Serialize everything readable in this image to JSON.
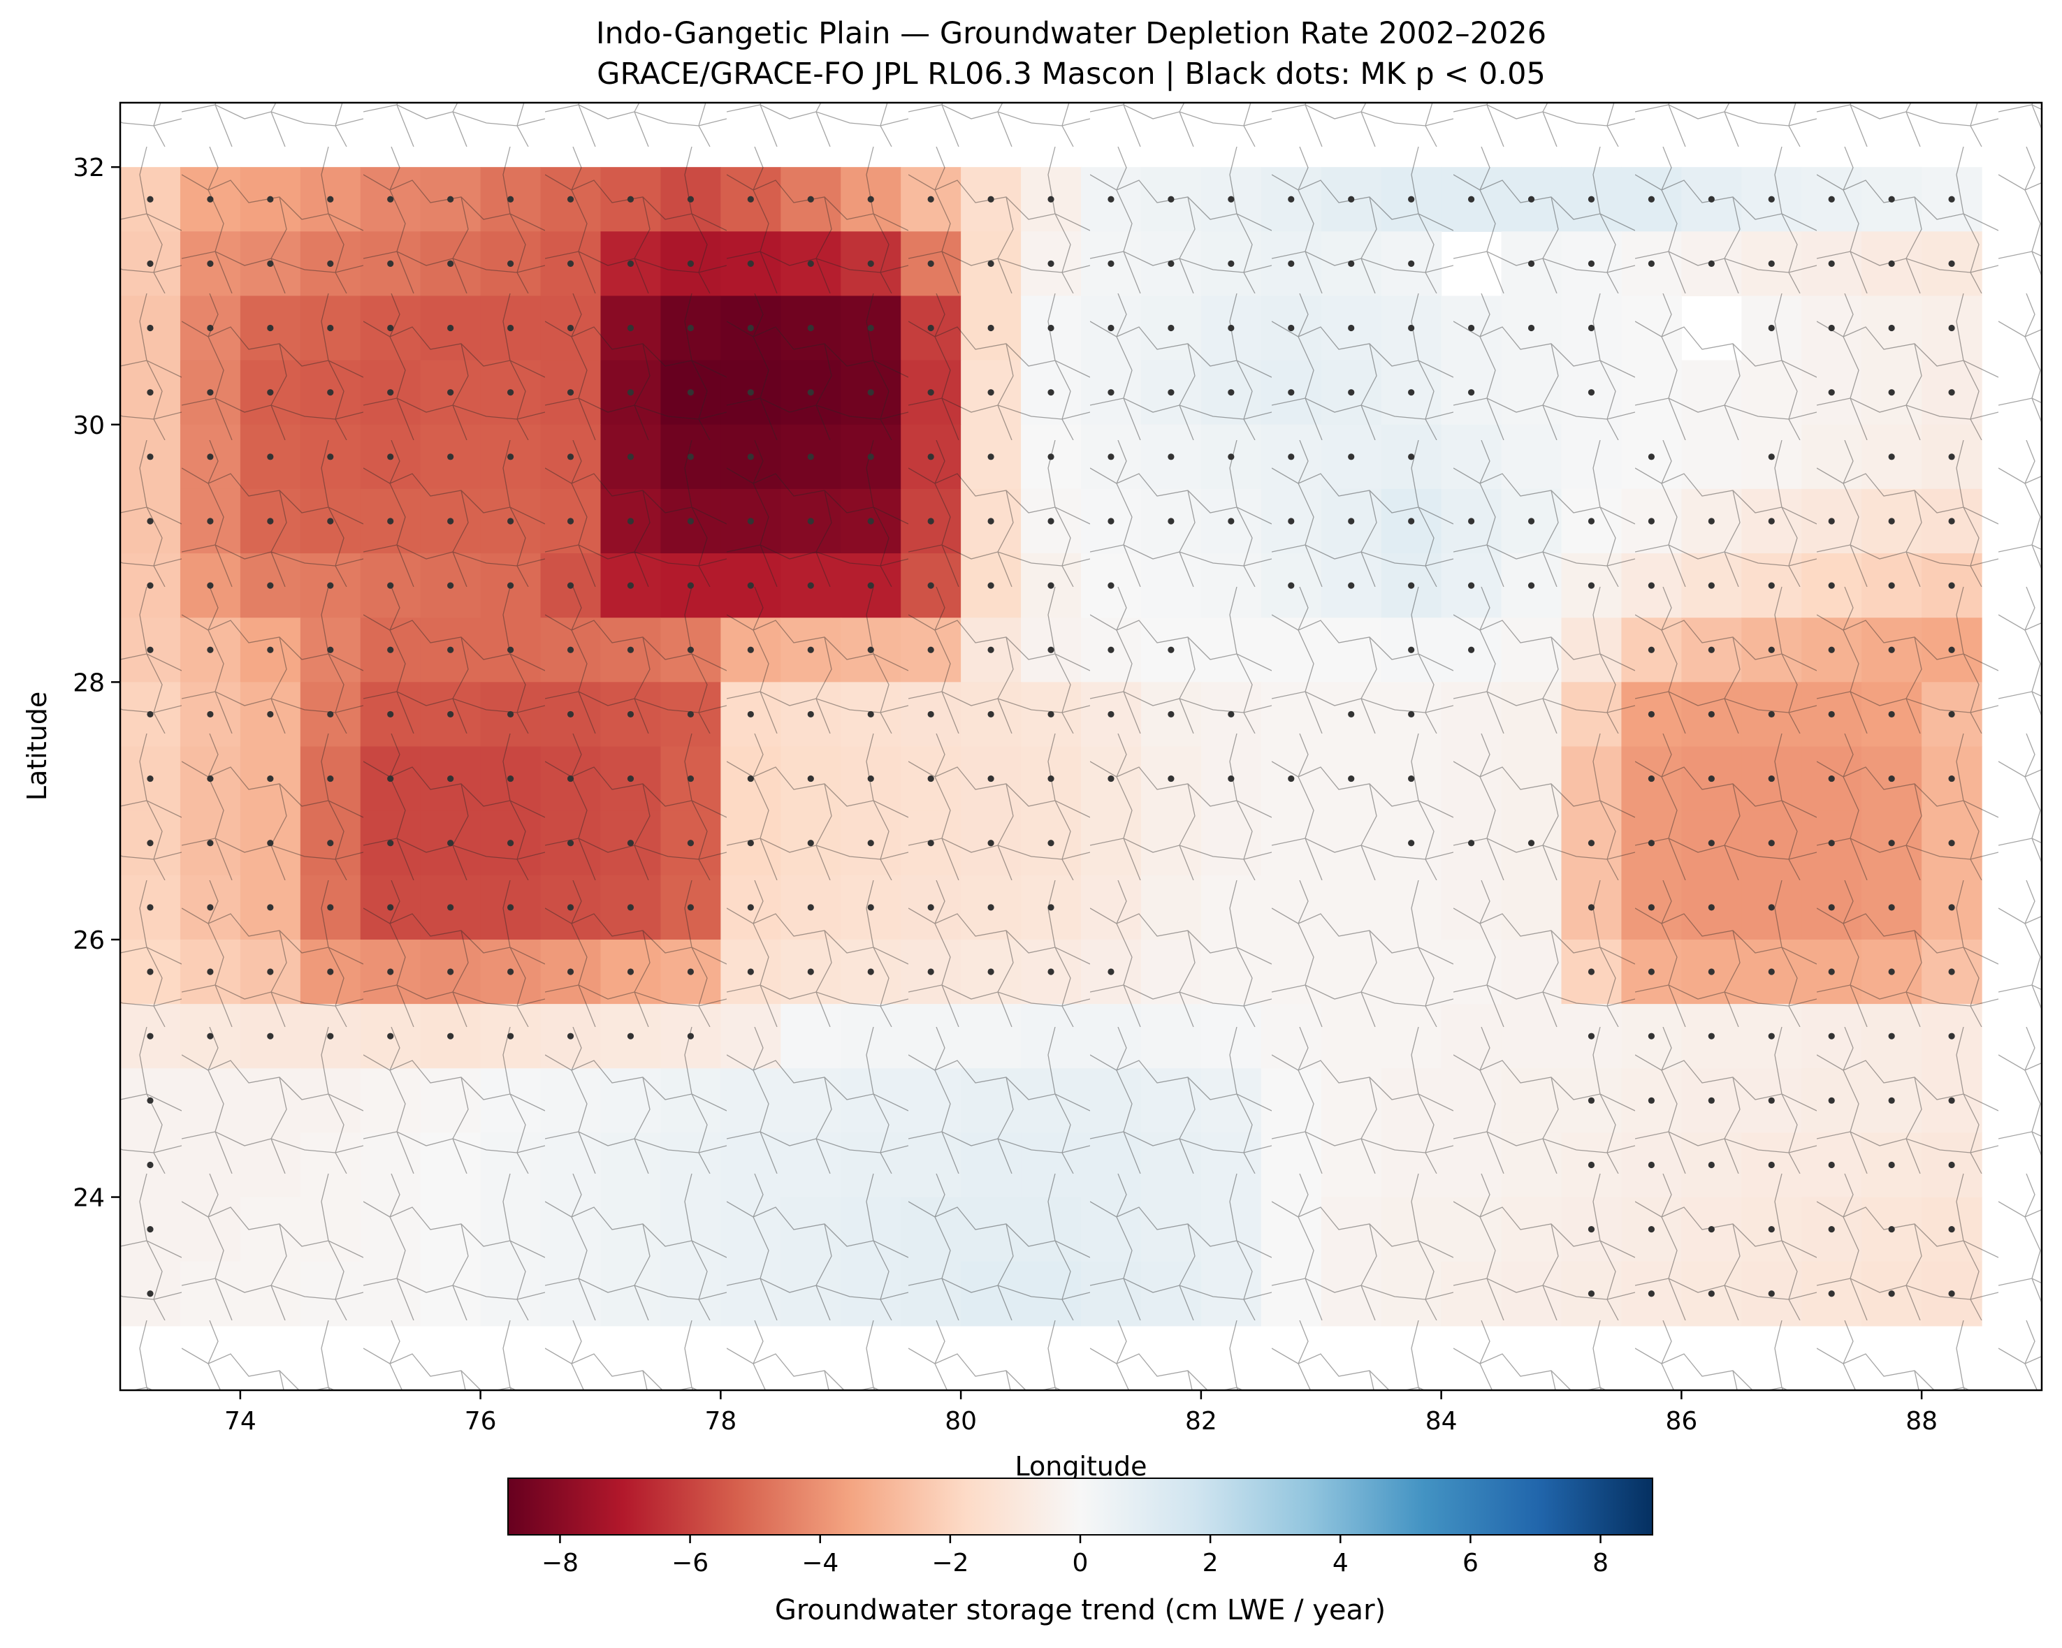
{
  "title": {
    "line1": "Indo-Gangetic Plain — Groundwater Depletion Rate 2002–2026",
    "line2": "GRACE/GRACE-FO JPL RL06.3 Mascon | Black dots: MK p < 0.05"
  },
  "axes": {
    "xlabel": "Longitude",
    "ylabel": "Latitude",
    "xlim": [
      73,
      89
    ],
    "ylim": [
      22.5,
      32.5
    ],
    "xticks": [
      74,
      76,
      78,
      80,
      82,
      84,
      86,
      88
    ],
    "yticks": [
      24,
      26,
      28,
      30,
      32
    ]
  },
  "colorbar": {
    "label": "Groundwater storage trend (cm LWE / year)",
    "vmin": -8.8,
    "vmax": 8.8,
    "ticks": [
      -8,
      -6,
      -4,
      -2,
      0,
      2,
      4,
      6,
      8
    ],
    "tick_labels": [
      "−8",
      "−6",
      "−4",
      "−2",
      "0",
      "2",
      "4",
      "6",
      "8"
    ],
    "colormap": "RdBu",
    "colormap_stops": [
      "#67001f",
      "#b2182b",
      "#d6604d",
      "#f4a582",
      "#fddbc7",
      "#f7f7f7",
      "#d1e5f0",
      "#92c5de",
      "#4393c3",
      "#2166ac",
      "#053061"
    ]
  },
  "significance_marker": {
    "color": "#333333",
    "meaning": "MK p < 0.05"
  },
  "chart_data": {
    "type": "heatmap",
    "title": "Indo-Gangetic Plain — Groundwater Depletion Rate 2002–2026",
    "subtitle": "GRACE/GRACE-FO JPL RL06.3 Mascon | Black dots: MK p < 0.05",
    "xlabel": "Longitude",
    "ylabel": "Latitude",
    "cell_size_deg": 0.5,
    "lon_edges": [
      73,
      88.5
    ],
    "lat_edges": [
      23,
      32
    ],
    "lon_centers": [
      73.25,
      73.75,
      74.25,
      74.75,
      75.25,
      75.75,
      76.25,
      76.75,
      77.25,
      77.75,
      78.25,
      78.75,
      79.25,
      79.75,
      80.25,
      80.75,
      81.25,
      81.75,
      82.25,
      82.75,
      83.25,
      83.75,
      84.25,
      84.75,
      85.25,
      85.75,
      86.25,
      86.75,
      87.25,
      87.75,
      88.25
    ],
    "lat_centers_north_to_south": [
      31.75,
      31.25,
      30.75,
      30.25,
      29.75,
      29.25,
      28.75,
      28.25,
      27.75,
      27.25,
      26.75,
      26.25,
      25.75,
      25.25,
      24.75,
      24.25,
      23.75,
      23.25
    ],
    "trend_cm_per_year": [
      [
        -2.2,
        -3.4,
        -3.6,
        -3.9,
        -4.3,
        -4.4,
        -4.8,
        -5.1,
        -5.4,
        -5.8,
        -5.3,
        -4.6,
        -3.8,
        -2.8,
        -1.5,
        -0.5,
        0.3,
        0.4,
        0.5,
        0.7,
        0.9,
        1.0,
        1.0,
        1.0,
        1.0,
        1.0,
        0.8,
        0.6,
        0.5,
        0.4,
        0.3
      ],
      [
        -2.3,
        -4.0,
        -4.2,
        -4.6,
        -4.7,
        -4.9,
        -5.1,
        -5.4,
        -6.8,
        -7.2,
        -7.1,
        -6.9,
        -6.4,
        -4.6,
        -1.6,
        -0.3,
        0.2,
        0.3,
        0.4,
        0.5,
        0.4,
        0.3,
        null,
        0.2,
        0.1,
        -0.1,
        -0.3,
        -0.5,
        -0.6,
        -0.8,
        -0.9
      ],
      [
        -2.5,
        -4.3,
        -5.1,
        -5.2,
        -5.4,
        -5.5,
        -5.5,
        -5.5,
        -8.0,
        -8.6,
        -8.7,
        -8.6,
        -8.5,
        -6.1,
        -1.6,
        0.1,
        0.3,
        0.4,
        0.6,
        0.7,
        0.6,
        0.5,
        0.3,
        0.2,
        0.1,
        0.0,
        null,
        -0.1,
        -0.3,
        -0.4,
        -0.5
      ],
      [
        -2.5,
        -4.4,
        -5.3,
        -5.4,
        -5.5,
        -5.4,
        -5.4,
        -5.5,
        -8.2,
        -8.8,
        -8.8,
        -8.7,
        -8.6,
        -6.3,
        -1.4,
        0.1,
        0.3,
        0.5,
        0.7,
        0.8,
        0.7,
        0.5,
        0.3,
        0.2,
        0.1,
        0.0,
        -0.1,
        -0.2,
        -0.3,
        -0.4,
        -0.6
      ],
      [
        -2.5,
        -4.3,
        -5.2,
        -5.3,
        -5.4,
        -5.3,
        -5.3,
        -5.4,
        -8.1,
        -8.6,
        -8.6,
        -8.5,
        -8.4,
        -6.2,
        -1.4,
        0.0,
        0.2,
        0.3,
        0.4,
        0.5,
        0.6,
        0.7,
        0.5,
        0.3,
        0.1,
        0.0,
        -0.1,
        -0.2,
        -0.4,
        -0.5,
        -0.7
      ],
      [
        -2.5,
        -4.3,
        -5.1,
        -5.2,
        -5.2,
        -5.2,
        -5.2,
        -5.3,
        -7.8,
        -8.2,
        -8.2,
        -8.1,
        -8.0,
        -6.0,
        -1.5,
        -0.1,
        0.1,
        0.2,
        0.3,
        0.5,
        0.7,
        1.0,
        0.7,
        0.4,
        0.0,
        -0.2,
        -0.5,
        -0.8,
        -1.0,
        -1.2,
        -1.3
      ],
      [
        -2.4,
        -3.8,
        -4.5,
        -4.6,
        -4.8,
        -4.9,
        -5.0,
        -5.6,
        -6.9,
        -7.0,
        -7.0,
        -6.9,
        -6.9,
        -5.6,
        -1.6,
        -0.4,
        0.0,
        0.1,
        0.2,
        0.4,
        0.6,
        0.9,
        0.6,
        0.2,
        -0.4,
        -0.8,
        -1.2,
        -1.5,
        -1.8,
        -2.0,
        -2.2
      ],
      [
        -2.3,
        -2.8,
        -3.4,
        -4.4,
        -5.0,
        -5.0,
        -5.0,
        -4.9,
        -4.8,
        -4.6,
        -3.2,
        -3.0,
        -2.9,
        -2.8,
        -1.0,
        -0.3,
        -0.1,
        0.0,
        0.0,
        0.0,
        0.0,
        0.1,
        0.1,
        -0.1,
        -1.0,
        -2.2,
        -2.6,
        -2.9,
        -3.1,
        -3.3,
        -3.4
      ],
      [
        -2.0,
        -2.6,
        -3.0,
        -4.6,
        -5.5,
        -5.5,
        -5.6,
        -5.6,
        -5.5,
        -5.4,
        -1.7,
        -1.5,
        -1.4,
        -1.3,
        -1.2,
        -1.1,
        -0.8,
        -0.4,
        -0.3,
        -0.2,
        -0.2,
        -0.2,
        -0.3,
        -0.4,
        -2.1,
        -3.6,
        -3.7,
        -3.7,
        -3.7,
        -3.6,
        -2.8
      ],
      [
        -2.1,
        -2.7,
        -3.0,
        -4.9,
        -5.9,
        -5.9,
        -5.9,
        -5.8,
        -5.7,
        -5.3,
        -1.8,
        -1.6,
        -1.5,
        -1.4,
        -1.3,
        -1.2,
        -0.9,
        -0.5,
        -0.3,
        -0.2,
        -0.2,
        -0.2,
        -0.3,
        -0.4,
        -2.6,
        -3.8,
        -3.9,
        -3.9,
        -3.9,
        -3.8,
        -3.0
      ],
      [
        -2.1,
        -2.7,
        -3.0,
        -4.9,
        -5.9,
        -5.9,
        -5.9,
        -5.8,
        -5.7,
        -5.3,
        -1.8,
        -1.6,
        -1.5,
        -1.4,
        -1.3,
        -1.2,
        -0.9,
        -0.5,
        -0.3,
        -0.2,
        -0.2,
        -0.2,
        -0.3,
        -0.4,
        -2.6,
        -3.8,
        -3.9,
        -3.9,
        -3.9,
        -3.8,
        -3.0
      ],
      [
        -2.0,
        -2.6,
        -3.0,
        -4.8,
        -5.8,
        -5.8,
        -5.8,
        -5.7,
        -5.6,
        -5.2,
        -1.7,
        -1.5,
        -1.4,
        -1.3,
        -1.2,
        -1.1,
        -0.8,
        -0.4,
        -0.2,
        -0.2,
        -0.2,
        -0.2,
        -0.3,
        -0.4,
        -2.6,
        -3.8,
        -3.9,
        -3.9,
        -3.9,
        -3.8,
        -3.0
      ],
      [
        -1.8,
        -2.2,
        -2.5,
        -3.8,
        -4.0,
        -4.1,
        -4.0,
        -3.8,
        -3.4,
        -3.2,
        -1.4,
        -1.2,
        -1.1,
        -1.0,
        -0.9,
        -0.8,
        -0.6,
        -0.3,
        -0.2,
        -0.2,
        -0.2,
        -0.2,
        -0.2,
        -0.3,
        -2.0,
        -3.2,
        -3.3,
        -3.3,
        -3.3,
        -3.2,
        -2.6
      ],
      [
        -0.8,
        -0.9,
        -1.0,
        -1.0,
        -1.1,
        -1.2,
        -1.1,
        -1.0,
        -0.9,
        -0.8,
        -0.6,
        0.1,
        0.2,
        0.2,
        0.2,
        0.3,
        0.3,
        0.2,
        0.1,
        -0.1,
        -0.2,
        -0.2,
        -0.3,
        -0.3,
        -0.3,
        -0.4,
        -0.5,
        -0.5,
        -0.6,
        -0.7,
        -0.8
      ],
      [
        -0.3,
        -0.3,
        -0.3,
        -0.3,
        -0.2,
        -0.1,
        0.1,
        0.2,
        0.3,
        0.4,
        0.5,
        0.5,
        0.6,
        0.6,
        0.7,
        0.7,
        0.7,
        0.6,
        0.5,
        0.0,
        -0.2,
        -0.3,
        -0.3,
        -0.4,
        -0.4,
        -0.5,
        -0.6,
        -0.6,
        -0.7,
        -0.7,
        -0.8
      ],
      [
        -0.3,
        -0.3,
        -0.3,
        -0.2,
        -0.1,
        0.0,
        0.2,
        0.3,
        0.4,
        0.5,
        0.6,
        0.6,
        0.7,
        0.7,
        0.8,
        0.8,
        0.8,
        0.7,
        0.6,
        0.0,
        -0.2,
        -0.3,
        -0.3,
        -0.4,
        -0.5,
        -0.6,
        -0.7,
        -0.8,
        -0.8,
        -0.9,
        -1.0
      ],
      [
        -0.3,
        -0.3,
        -0.2,
        -0.2,
        -0.1,
        0.0,
        0.2,
        0.3,
        0.4,
        0.5,
        0.6,
        0.7,
        0.8,
        0.9,
        0.9,
        0.9,
        0.8,
        0.7,
        0.6,
        0.0,
        -0.3,
        -0.4,
        -0.4,
        -0.5,
        -0.6,
        -0.7,
        -0.8,
        -0.9,
        -1.0,
        -1.1,
        -1.2
      ],
      [
        -0.3,
        -0.2,
        -0.2,
        -0.1,
        -0.1,
        0.0,
        0.2,
        0.3,
        0.4,
        0.5,
        0.6,
        0.7,
        0.8,
        0.9,
        1.0,
        1.0,
        0.9,
        0.8,
        0.6,
        0.0,
        -0.3,
        -0.4,
        -0.5,
        -0.6,
        -0.7,
        -0.8,
        -0.9,
        -1.0,
        -1.1,
        -1.2,
        -1.3
      ]
    ],
    "significant_mk_p_lt_0_05": "all cells marked except those listed",
    "not_significant_cells": [
      [
        84.25,
        31.25
      ],
      [
        85.75,
        30.75
      ],
      [
        84.75,
        30.25
      ],
      [
        85.75,
        30.25
      ],
      [
        86.25,
        30.25
      ],
      [
        86.75,
        30.25
      ],
      [
        84.25,
        29.75
      ],
      [
        84.75,
        29.75
      ],
      [
        85.25,
        29.75
      ],
      [
        86.25,
        29.75
      ],
      [
        87.25,
        29.75
      ],
      [
        81.75,
        28.75
      ],
      [
        82.25,
        28.75
      ],
      [
        82.25,
        28.25
      ],
      [
        82.75,
        28.25
      ],
      [
        83.25,
        28.25
      ],
      [
        84.75,
        28.25
      ],
      [
        85.25,
        28.25
      ],
      [
        82.75,
        27.75
      ],
      [
        84.25,
        27.75
      ],
      [
        84.75,
        27.75
      ],
      [
        85.25,
        27.75
      ],
      [
        84.25,
        27.25
      ],
      [
        84.75,
        27.25
      ],
      [
        85.25,
        27.25
      ],
      [
        81.25,
        26.75
      ],
      [
        81.75,
        26.75
      ],
      [
        82.25,
        26.75
      ],
      [
        82.75,
        26.75
      ],
      [
        83.25,
        26.75
      ],
      [
        81.25,
        26.25
      ],
      [
        81.75,
        26.25
      ],
      [
        82.25,
        26.25
      ],
      [
        82.75,
        26.25
      ],
      [
        83.25,
        26.25
      ],
      [
        83.75,
        26.25
      ],
      [
        84.25,
        26.25
      ],
      [
        84.75,
        26.25
      ],
      [
        81.75,
        25.75
      ],
      [
        82.25,
        25.75
      ],
      [
        82.75,
        25.75
      ],
      [
        83.25,
        25.75
      ],
      [
        83.75,
        25.75
      ],
      [
        84.25,
        25.75
      ],
      [
        84.75,
        25.75
      ],
      [
        78.25,
        25.25
      ],
      [
        78.75,
        25.25
      ],
      [
        79.25,
        25.25
      ],
      [
        79.75,
        25.25
      ],
      [
        80.25,
        25.25
      ],
      [
        80.75,
        25.25
      ],
      [
        81.25,
        25.25
      ],
      [
        81.75,
        25.25
      ],
      [
        82.25,
        25.25
      ],
      [
        82.75,
        25.25
      ],
      [
        83.25,
        25.25
      ],
      [
        83.75,
        25.25
      ],
      [
        84.25,
        25.25
      ],
      [
        84.75,
        25.25
      ],
      [
        73.75,
        24.75
      ],
      [
        74.25,
        24.75
      ],
      [
        74.75,
        24.75
      ],
      [
        75.25,
        24.75
      ],
      [
        75.75,
        24.75
      ],
      [
        76.25,
        24.75
      ],
      [
        76.75,
        24.75
      ],
      [
        77.25,
        24.75
      ],
      [
        77.75,
        24.75
      ],
      [
        78.25,
        24.75
      ],
      [
        78.75,
        24.75
      ],
      [
        79.25,
        24.75
      ],
      [
        79.75,
        24.75
      ],
      [
        80.25,
        24.75
      ],
      [
        80.75,
        24.75
      ],
      [
        81.25,
        24.75
      ],
      [
        81.75,
        24.75
      ],
      [
        82.25,
        24.75
      ],
      [
        82.75,
        24.75
      ],
      [
        83.25,
        24.75
      ],
      [
        83.75,
        24.75
      ],
      [
        84.25,
        24.75
      ],
      [
        84.75,
        24.75
      ],
      [
        73.75,
        24.25
      ],
      [
        74.25,
        24.25
      ],
      [
        74.75,
        24.25
      ],
      [
        75.25,
        24.25
      ],
      [
        75.75,
        24.25
      ],
      [
        76.25,
        24.25
      ],
      [
        76.75,
        24.25
      ],
      [
        77.25,
        24.25
      ],
      [
        77.75,
        24.25
      ],
      [
        78.25,
        24.25
      ],
      [
        78.75,
        24.25
      ],
      [
        79.25,
        24.25
      ],
      [
        79.75,
        24.25
      ],
      [
        80.25,
        24.25
      ],
      [
        80.75,
        24.25
      ],
      [
        81.25,
        24.25
      ],
      [
        81.75,
        24.25
      ],
      [
        82.25,
        24.25
      ],
      [
        82.75,
        24.25
      ],
      [
        83.25,
        24.25
      ],
      [
        83.75,
        24.25
      ],
      [
        84.25,
        24.25
      ],
      [
        84.75,
        24.25
      ],
      [
        73.75,
        23.75
      ],
      [
        74.25,
        23.75
      ],
      [
        74.75,
        23.75
      ],
      [
        75.25,
        23.75
      ],
      [
        75.75,
        23.75
      ],
      [
        76.25,
        23.75
      ],
      [
        76.75,
        23.75
      ],
      [
        77.25,
        23.75
      ],
      [
        77.75,
        23.75
      ],
      [
        78.25,
        23.75
      ],
      [
        78.75,
        23.75
      ],
      [
        79.25,
        23.75
      ],
      [
        79.75,
        23.75
      ],
      [
        80.25,
        23.75
      ],
      [
        80.75,
        23.75
      ],
      [
        81.25,
        23.75
      ],
      [
        81.75,
        23.75
      ],
      [
        82.25,
        23.75
      ],
      [
        82.75,
        23.75
      ],
      [
        83.25,
        23.75
      ],
      [
        83.75,
        23.75
      ],
      [
        84.25,
        23.75
      ],
      [
        84.75,
        23.75
      ],
      [
        73.75,
        23.25
      ],
      [
        74.25,
        23.25
      ],
      [
        74.75,
        23.25
      ],
      [
        75.25,
        23.25
      ],
      [
        75.75,
        23.25
      ],
      [
        76.25,
        23.25
      ],
      [
        76.75,
        23.25
      ],
      [
        77.25,
        23.25
      ],
      [
        77.75,
        23.25
      ],
      [
        78.25,
        23.25
      ],
      [
        78.75,
        23.25
      ],
      [
        79.25,
        23.25
      ],
      [
        79.75,
        23.25
      ],
      [
        80.25,
        23.25
      ],
      [
        80.75,
        23.25
      ],
      [
        81.25,
        23.25
      ],
      [
        81.75,
        23.25
      ],
      [
        82.25,
        23.25
      ],
      [
        82.75,
        23.25
      ],
      [
        83.25,
        23.25
      ],
      [
        83.75,
        23.25
      ],
      [
        84.25,
        23.25
      ],
      [
        84.75,
        23.25
      ]
    ]
  }
}
